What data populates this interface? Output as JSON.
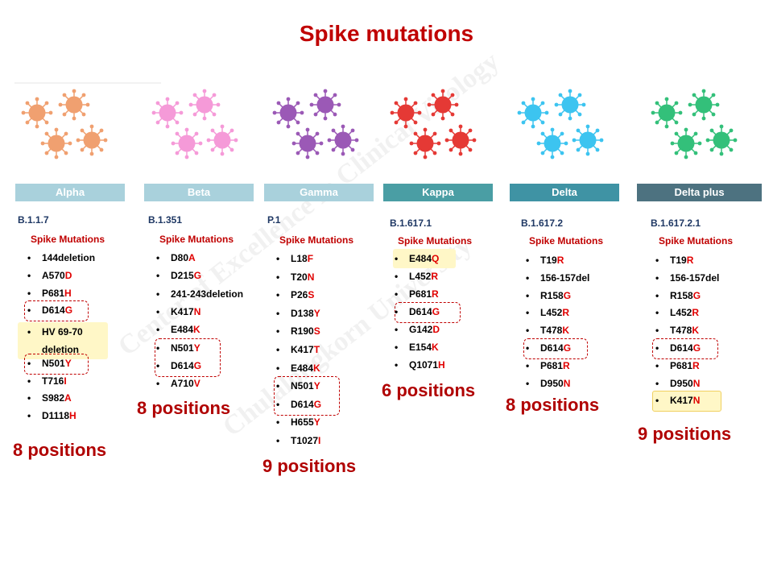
{
  "title": "Spike mutations",
  "colors": {
    "title": "#c00000",
    "mutation_letter": "#e00000"
  },
  "watermark": [
    "Center of Excellence in Clinical Virology",
    "Chulalongkorn University"
  ],
  "variants": [
    {
      "name": "Alpha",
      "lineage": "B.1.1.7",
      "spike_label": "Spike Mutations",
      "virus_color": "#f0a070",
      "mutations": [
        {
          "text": "144deletion"
        },
        {
          "text": "A570",
          "red": "D"
        },
        {
          "text": "P681",
          "red": "H"
        },
        {
          "text": "D614",
          "red": "G"
        },
        {
          "text": "HV 69-70"
        },
        {
          "text": "deletion"
        },
        {
          "text": "N501",
          "red": "Y"
        },
        {
          "text": "T716",
          "red": "I"
        },
        {
          "text": "S982",
          "red": "A"
        },
        {
          "text": "D1118",
          "red": "H"
        }
      ],
      "positions": "8 positions"
    },
    {
      "name": "Beta",
      "lineage": "B.1.351",
      "spike_label": "Spike Mutations",
      "virus_color": "#f59ad8",
      "mutations": [
        {
          "text": "D80",
          "red": "A"
        },
        {
          "text": "D215",
          "red": "G"
        },
        {
          "text": "241-243deletion"
        },
        {
          "text": "K417",
          "red": "N"
        },
        {
          "text": "E484",
          "red": "K"
        },
        {
          "text": "N501",
          "red": "Y"
        },
        {
          "text": "D614",
          "red": "G"
        },
        {
          "text": "A710",
          "red": "V"
        }
      ],
      "positions": "8 positions"
    },
    {
      "name": "Gamma",
      "lineage": "P.1",
      "spike_label": "Spike Mutations",
      "virus_color": "#9b59b6",
      "mutations": [
        {
          "text": "L18",
          "red": "F"
        },
        {
          "text": "T20",
          "red": "N"
        },
        {
          "text": "P26",
          "red": "S"
        },
        {
          "text": "D138",
          "red": "Y"
        },
        {
          "text": "R190",
          "red": "S"
        },
        {
          "text": "K417",
          "red": "T"
        },
        {
          "text": "E484",
          "red": "K"
        },
        {
          "text": "N501",
          "red": "Y"
        },
        {
          "text": "D614",
          "red": "G"
        },
        {
          "text": "H655",
          "red": "Y"
        },
        {
          "text": "T1027",
          "red": "I"
        }
      ],
      "positions": "9 positions"
    },
    {
      "name": "Kappa",
      "lineage": "B.1.617.1",
      "spike_label": "Spike Mutations",
      "virus_color": "#e53935",
      "mutations": [
        {
          "text": "E484",
          "red": "Q"
        },
        {
          "text": "L452",
          "red": "R"
        },
        {
          "text": "P681",
          "red": "R"
        },
        {
          "text": "D614",
          "red": "G"
        },
        {
          "text": "G142",
          "red": "D"
        },
        {
          "text": "E154",
          "red": "K"
        },
        {
          "text": "Q1071",
          "red": "H"
        }
      ],
      "positions": "6 positions"
    },
    {
      "name": "Delta",
      "lineage": "B.1.617.2",
      "spike_label": "Spike Mutations",
      "virus_color": "#3cc4f0",
      "mutations": [
        {
          "text": "T19",
          "red": "R"
        },
        {
          "text": "156-157del"
        },
        {
          "text": "R158",
          "red": "G"
        },
        {
          "text": "L452",
          "red": "R"
        },
        {
          "text": "T478",
          "red": "K"
        },
        {
          "text": "D614",
          "red": "G"
        },
        {
          "text": "P681",
          "red": "R"
        },
        {
          "text": "D950",
          "red": "N"
        }
      ],
      "positions": "8 positions"
    },
    {
      "name": "Delta plus",
      "lineage": "B.1.617.2.1",
      "spike_label": "Spike Mutations",
      "virus_color": "#33c07a",
      "mutations": [
        {
          "text": "T19",
          "red": "R"
        },
        {
          "text": "156-157del"
        },
        {
          "text": "R158",
          "red": "G"
        },
        {
          "text": "L452",
          "red": "R"
        },
        {
          "text": "T478",
          "red": "K"
        },
        {
          "text": "D614",
          "red": "G"
        },
        {
          "text": "P681",
          "red": "R"
        },
        {
          "text": "D950",
          "red": "N"
        },
        {
          "text": "K417",
          "red": "N"
        }
      ],
      "positions": "9 positions"
    }
  ]
}
